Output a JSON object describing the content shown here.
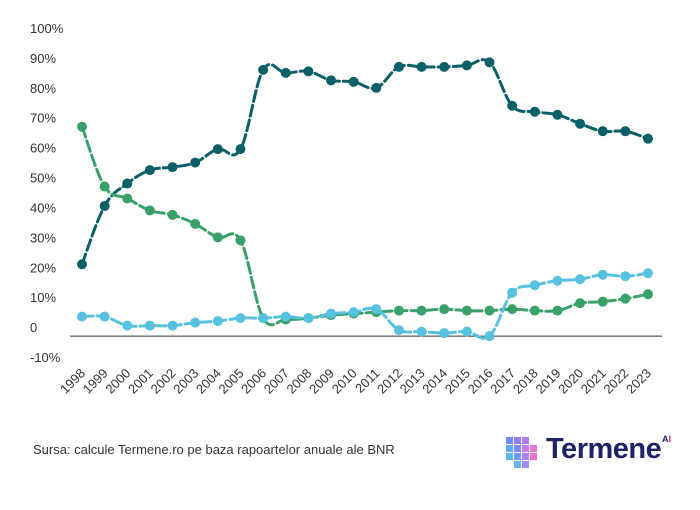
{
  "chart_data": {
    "type": "line",
    "title": "",
    "xlabel": "",
    "ylabel": "",
    "ylim": [
      -10,
      100
    ],
    "ytick_labels": [
      "-10%",
      "0",
      "10%",
      "20%",
      "30%",
      "40%",
      "50%",
      "60%",
      "70%",
      "80%",
      "90%",
      "100%"
    ],
    "ytick_values": [
      -10,
      0,
      10,
      20,
      30,
      40,
      50,
      60,
      70,
      80,
      90,
      100
    ],
    "categories": [
      "1998",
      "1999",
      "2000",
      "2001",
      "2002",
      "2003",
      "2004",
      "2005",
      "2006",
      "2007",
      "2008",
      "2009",
      "2010",
      "2011",
      "2012",
      "2013",
      "2014",
      "2015",
      "2016",
      "2017",
      "2018",
      "2019",
      "2020",
      "2021",
      "2022",
      "2023"
    ],
    "grid": false,
    "legend": "none",
    "series": [
      {
        "color": "#0a6066",
        "values": [
          21,
          40.5,
          48,
          52.5,
          53.5,
          55,
          59.5,
          59.5,
          86,
          85,
          85.5,
          82.5,
          82,
          80,
          87,
          87,
          87,
          87.5,
          88.5,
          74,
          72,
          71,
          68,
          65.5,
          65.5,
          63
        ]
      },
      {
        "color": "#3aa06a",
        "values": [
          67,
          47,
          43,
          39,
          37.5,
          34.5,
          30,
          29,
          3,
          2.5,
          3,
          4,
          4.5,
          5,
          5.5,
          5.5,
          6,
          5.5,
          5.5,
          6,
          5.5,
          5.5,
          8,
          8.5,
          9.5,
          11
        ]
      },
      {
        "color": "#56c2df",
        "values": [
          3.5,
          3.5,
          0.5,
          0.5,
          0.5,
          1.5,
          2,
          3,
          3,
          3.5,
          3,
          4.5,
          5,
          6,
          -1,
          -1.5,
          -2,
          -1.5,
          -3,
          11.5,
          14,
          15.5,
          16,
          17.5,
          17,
          18
        ]
      }
    ]
  },
  "footer": {
    "source": "Sursa: calcule Termene.ro pe baza rapoartelor anuale ale BNR"
  },
  "logo": {
    "name": "Termene",
    "badge_letter": "A",
    "badge_dot": "I"
  }
}
